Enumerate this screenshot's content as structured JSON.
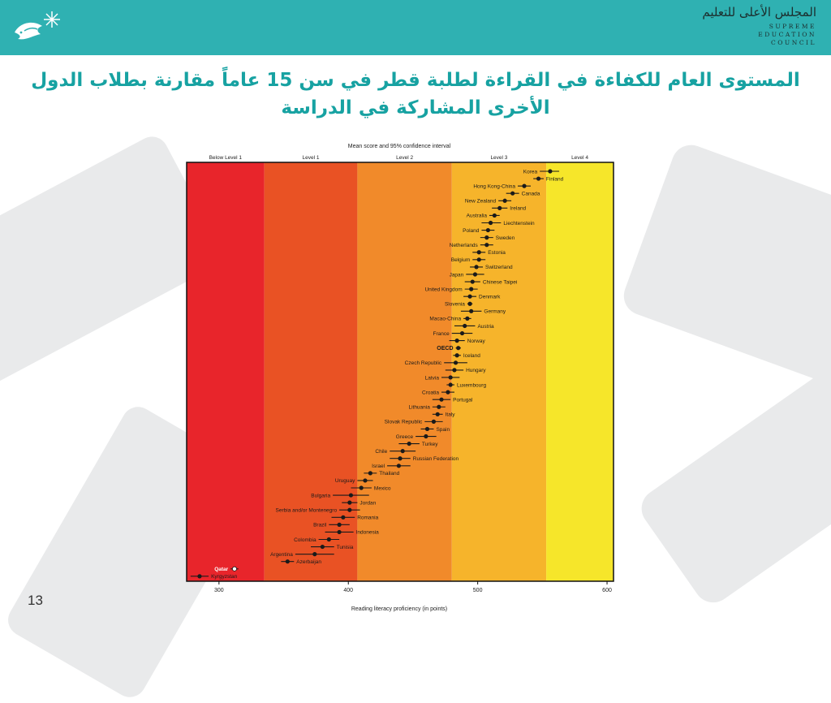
{
  "header": {
    "council_ar": "المجلس الأعلى للتعليم",
    "council_en": [
      "SUPREME",
      "EDUCATION",
      "COUNCIL"
    ],
    "brand_color": "#2fb1b2"
  },
  "title": "المستوى العام للكفاءة في القراءة لطلبة قطر في سن 15 عاماً مقارنة بطلاب الدول الأخرى المشاركة في الدراسة",
  "page_number": "13",
  "chart_data": {
    "type": "scatter",
    "title": "Mean score and 95% confidence interval",
    "xlabel": "Reading literacy proficiency (in points)",
    "xlim": [
      275,
      605
    ],
    "xticks": [
      300,
      400,
      500,
      600
    ],
    "level_bands": [
      {
        "label": "Below Level 1",
        "from": 275,
        "to": 335,
        "color": "#e8252b"
      },
      {
        "label": "Level 1",
        "from": 335,
        "to": 407,
        "color": "#e95224"
      },
      {
        "label": "Level 2",
        "from": 407,
        "to": 480,
        "color": "#f18a2a"
      },
      {
        "label": "Level 3",
        "from": 480,
        "to": 553,
        "color": "#f6b42b"
      },
      {
        "label": "Level 4",
        "from": 553,
        "to": 605,
        "color": "#f6e62a"
      }
    ],
    "countries": [
      {
        "name": "Korea",
        "mean": 556,
        "low": 548,
        "high": 563,
        "side": "left"
      },
      {
        "name": "Finland",
        "mean": 547,
        "low": 543,
        "high": 551,
        "side": "right"
      },
      {
        "name": "Hong Kong-China",
        "mean": 536,
        "low": 531,
        "high": 541,
        "side": "left"
      },
      {
        "name": "Canada",
        "mean": 527,
        "low": 522,
        "high": 532,
        "side": "right"
      },
      {
        "name": "New Zealand",
        "mean": 521,
        "low": 516,
        "high": 526,
        "side": "left"
      },
      {
        "name": "Ireland",
        "mean": 517,
        "low": 511,
        "high": 523,
        "side": "right"
      },
      {
        "name": "Australia",
        "mean": 513,
        "low": 509,
        "high": 517,
        "side": "left"
      },
      {
        "name": "Liechtenstein",
        "mean": 510,
        "low": 503,
        "high": 518,
        "side": "right"
      },
      {
        "name": "Poland",
        "mean": 508,
        "low": 503,
        "high": 513,
        "side": "left"
      },
      {
        "name": "Sweden",
        "mean": 507,
        "low": 502,
        "high": 512,
        "side": "right"
      },
      {
        "name": "Netherlands",
        "mean": 507,
        "low": 502,
        "high": 512,
        "side": "left"
      },
      {
        "name": "Estonia",
        "mean": 501,
        "low": 496,
        "high": 506,
        "side": "right"
      },
      {
        "name": "Belgium",
        "mean": 501,
        "low": 496,
        "high": 506,
        "side": "left"
      },
      {
        "name": "Switzerland",
        "mean": 499,
        "low": 494,
        "high": 504,
        "side": "right"
      },
      {
        "name": "Japan",
        "mean": 498,
        "low": 491,
        "high": 505,
        "side": "left"
      },
      {
        "name": "Chinese Taipei",
        "mean": 496,
        "low": 490,
        "high": 502,
        "side": "right"
      },
      {
        "name": "United Kingdom",
        "mean": 495,
        "low": 490,
        "high": 500,
        "side": "left"
      },
      {
        "name": "Denmark",
        "mean": 494,
        "low": 489,
        "high": 499,
        "side": "right"
      },
      {
        "name": "Slovenia",
        "mean": 494,
        "low": 492,
        "high": 496,
        "side": "left"
      },
      {
        "name": "Germany",
        "mean": 495,
        "low": 487,
        "high": 503,
        "side": "right"
      },
      {
        "name": "Macao-China",
        "mean": 492,
        "low": 489,
        "high": 495,
        "side": "left"
      },
      {
        "name": "Austria",
        "mean": 490,
        "low": 482,
        "high": 498,
        "side": "right"
      },
      {
        "name": "France",
        "mean": 488,
        "low": 480,
        "high": 496,
        "side": "left"
      },
      {
        "name": "Norway",
        "mean": 484,
        "low": 478,
        "high": 490,
        "side": "right"
      },
      {
        "name": "OECD",
        "mean": 485,
        "low": 483,
        "high": 487,
        "side": "left",
        "bold": true
      },
      {
        "name": "Iceland",
        "mean": 484,
        "low": 481,
        "high": 487,
        "side": "right"
      },
      {
        "name": "Czech Republic",
        "mean": 483,
        "low": 474,
        "high": 492,
        "side": "left"
      },
      {
        "name": "Hungary",
        "mean": 482,
        "low": 475,
        "high": 489,
        "side": "right"
      },
      {
        "name": "Latvia",
        "mean": 479,
        "low": 472,
        "high": 486,
        "side": "left"
      },
      {
        "name": "Luxembourg",
        "mean": 479,
        "low": 476,
        "high": 482,
        "side": "right"
      },
      {
        "name": "Croatia",
        "mean": 477,
        "low": 472,
        "high": 482,
        "side": "left"
      },
      {
        "name": "Portugal",
        "mean": 472,
        "low": 465,
        "high": 479,
        "side": "right"
      },
      {
        "name": "Lithuania",
        "mean": 470,
        "low": 465,
        "high": 475,
        "side": "left"
      },
      {
        "name": "Italy",
        "mean": 469,
        "low": 465,
        "high": 473,
        "side": "right"
      },
      {
        "name": "Slovak Republic",
        "mean": 466,
        "low": 459,
        "high": 473,
        "side": "left"
      },
      {
        "name": "Spain",
        "mean": 461,
        "low": 456,
        "high": 466,
        "side": "right"
      },
      {
        "name": "Greece",
        "mean": 460,
        "low": 452,
        "high": 468,
        "side": "left"
      },
      {
        "name": "Turkey",
        "mean": 447,
        "low": 439,
        "high": 455,
        "side": "right"
      },
      {
        "name": "Chile",
        "mean": 442,
        "low": 432,
        "high": 452,
        "side": "left"
      },
      {
        "name": "Russian Federation",
        "mean": 440,
        "low": 432,
        "high": 448,
        "side": "right"
      },
      {
        "name": "Israel",
        "mean": 439,
        "low": 430,
        "high": 448,
        "side": "left"
      },
      {
        "name": "Thailand",
        "mean": 417,
        "low": 412,
        "high": 422,
        "side": "right"
      },
      {
        "name": "Uruguay",
        "mean": 413,
        "low": 407,
        "high": 419,
        "side": "left"
      },
      {
        "name": "Mexico",
        "mean": 410,
        "low": 402,
        "high": 418,
        "side": "right"
      },
      {
        "name": "Bulgaria",
        "mean": 402,
        "low": 388,
        "high": 416,
        "side": "left"
      },
      {
        "name": "Jordan",
        "mean": 401,
        "low": 395,
        "high": 407,
        "side": "right"
      },
      {
        "name": "Serbia and/or Montenegro",
        "mean": 401,
        "low": 393,
        "high": 409,
        "side": "left"
      },
      {
        "name": "Romania",
        "mean": 396,
        "low": 387,
        "high": 405,
        "side": "right"
      },
      {
        "name": "Brazil",
        "mean": 393,
        "low": 385,
        "high": 401,
        "side": "left"
      },
      {
        "name": "Indonesia",
        "mean": 393,
        "low": 382,
        "high": 404,
        "side": "right"
      },
      {
        "name": "Colombia",
        "mean": 385,
        "low": 377,
        "high": 393,
        "side": "left"
      },
      {
        "name": "Tunisia",
        "mean": 380,
        "low": 371,
        "high": 389,
        "side": "right"
      },
      {
        "name": "Argentina",
        "mean": 374,
        "low": 359,
        "high": 389,
        "side": "left"
      },
      {
        "name": "Azerbaijan",
        "mean": 353,
        "low": 348,
        "high": 358,
        "side": "right"
      },
      {
        "name": "Qatar",
        "mean": 312,
        "low": 309,
        "high": 315,
        "side": "left",
        "highlight": true
      },
      {
        "name": "Kyrgyzstan",
        "mean": 285,
        "low": 278,
        "high": 292,
        "side": "right"
      }
    ]
  }
}
